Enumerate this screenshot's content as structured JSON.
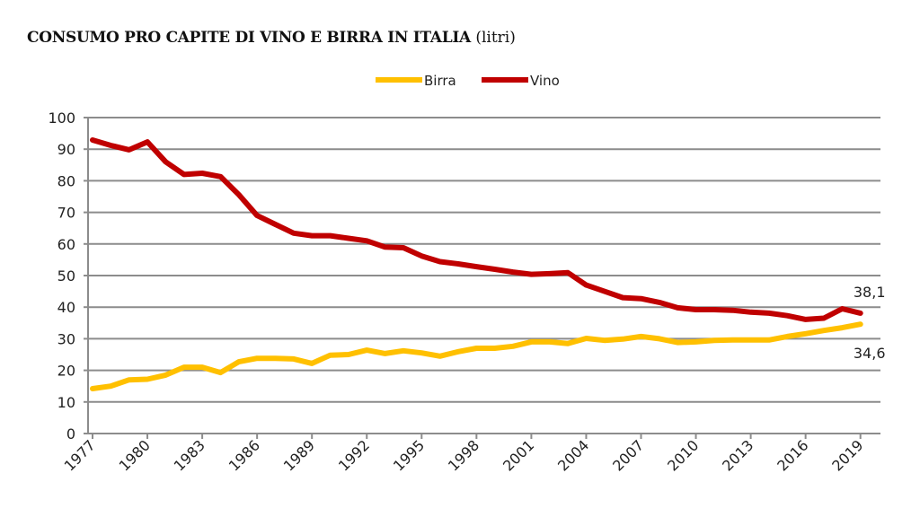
{
  "chart_data": {
    "type": "line",
    "title": "CONSUMO PRO CAPITE DI VINO E BIRRA IN ITALIA",
    "subtitle": "(litri)",
    "xlabel": "",
    "ylabel": "",
    "ylim": [
      0,
      100
    ],
    "yticks": [
      0,
      10,
      20,
      30,
      40,
      50,
      60,
      70,
      80,
      90,
      100
    ],
    "grid": true,
    "legend": "top-center",
    "x": [
      1977,
      1978,
      1979,
      1980,
      1981,
      1982,
      1983,
      1984,
      1985,
      1986,
      1987,
      1988,
      1989,
      1990,
      1991,
      1992,
      1993,
      1994,
      1995,
      1996,
      1997,
      1998,
      1999,
      2000,
      2001,
      2002,
      2003,
      2004,
      2005,
      2006,
      2007,
      2008,
      2009,
      2010,
      2011,
      2012,
      2013,
      2014,
      2015,
      2016,
      2017,
      2018,
      2019
    ],
    "xtick_labels": [
      "1977",
      "1980",
      "1983",
      "1986",
      "1989",
      "1992",
      "1995",
      "1998",
      "2001",
      "2004",
      "2007",
      "2010",
      "2013",
      "2016",
      "2019"
    ],
    "series": [
      {
        "name": "Birra",
        "color": "#FFC000",
        "values": [
          14.2,
          15,
          17,
          17.2,
          18.5,
          21,
          21,
          19.3,
          22.7,
          23.8,
          23.8,
          23.6,
          22.2,
          24.8,
          25,
          26.4,
          25.3,
          26.2,
          25.5,
          24.5,
          25.9,
          27,
          27,
          27.6,
          29,
          29,
          28.5,
          30.1,
          29.5,
          29.9,
          30.7,
          30,
          28.8,
          29,
          29.5,
          29.6,
          29.6,
          29.6,
          30.7,
          31.6,
          32.6,
          33.5,
          34.6
        ],
        "end_label": "34,6"
      },
      {
        "name": "Vino",
        "color": "#C00000",
        "values": [
          92.9,
          91.2,
          89.8,
          92.3,
          86,
          82,
          82.4,
          81.3,
          75.6,
          69,
          66.2,
          63.4,
          62.6,
          62.6,
          61.8,
          61,
          59,
          58.8,
          56.2,
          54.4,
          53.7,
          52.8,
          52,
          51.1,
          50.4,
          50.6,
          50.9,
          47,
          45,
          43,
          42.7,
          41.5,
          39.8,
          39.2,
          39.2,
          39,
          38.4,
          38.1,
          37.3,
          36.1,
          36.5,
          39.5,
          38.1
        ],
        "end_label": "38,1"
      }
    ]
  }
}
